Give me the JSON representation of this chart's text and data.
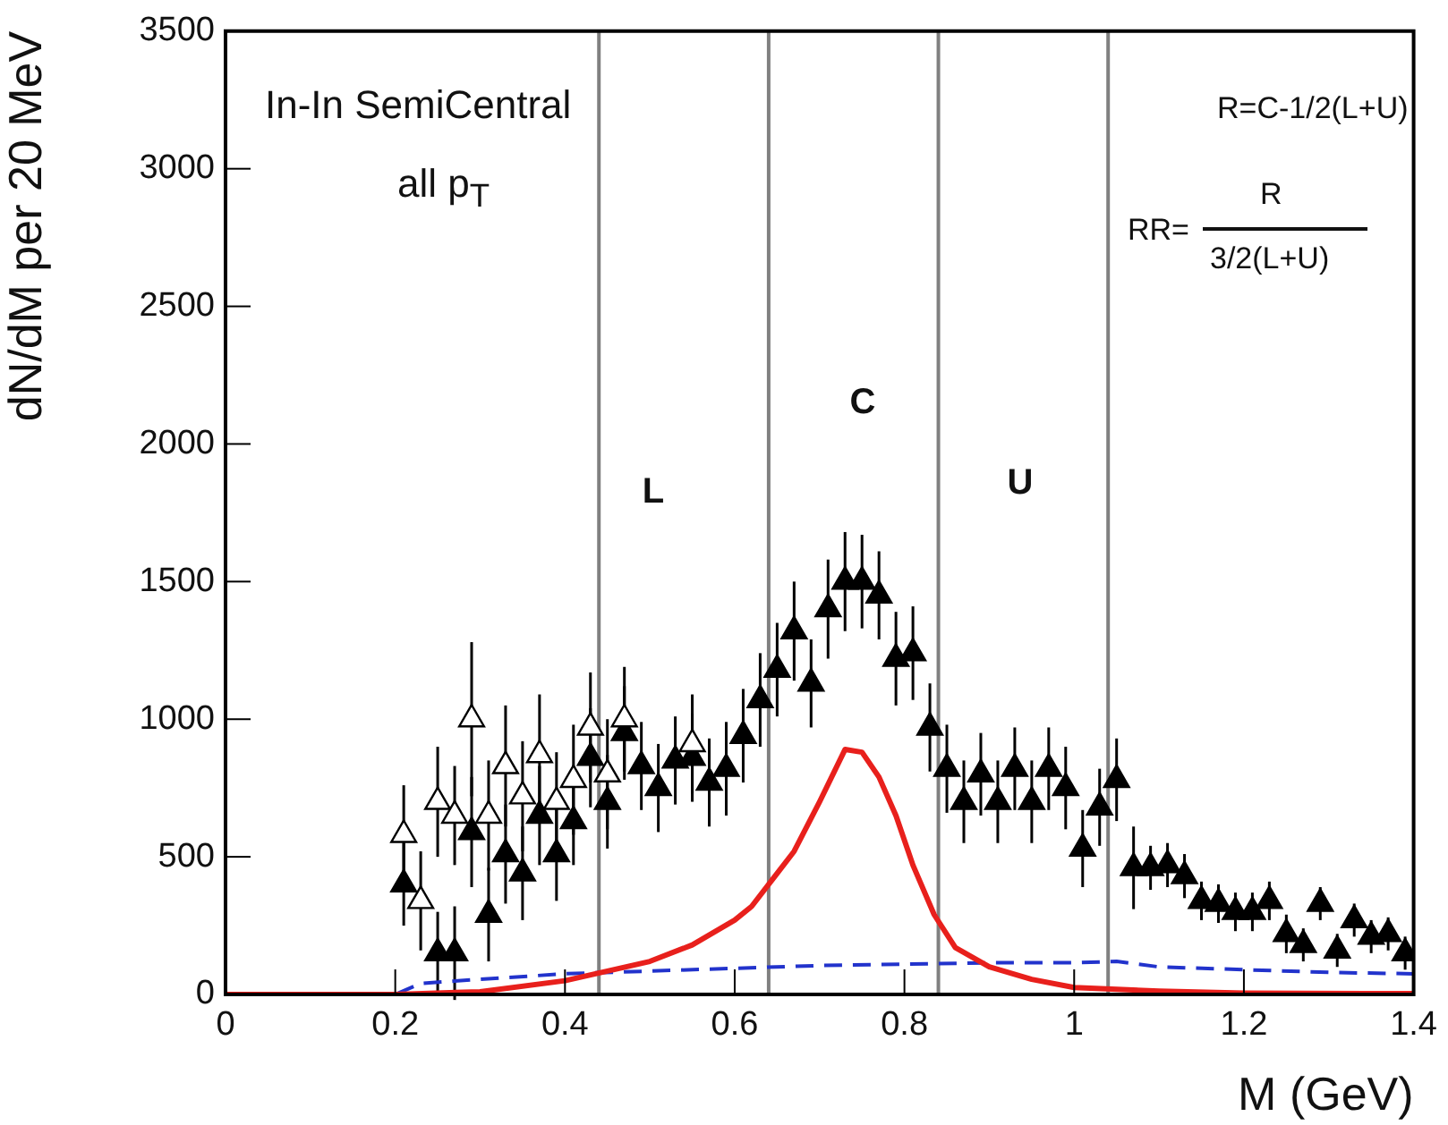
{
  "chart_data": {
    "type": "scatter",
    "xlabel": "M (GeV)",
    "ylabel": "dN/dM per 20 MeV",
    "xlim": [
      0,
      1.4
    ],
    "xticks": [
      0,
      0.2,
      0.4,
      0.6,
      0.8,
      1,
      1.2,
      1.4
    ],
    "ylim": [
      0,
      3500
    ],
    "yticks": [
      0,
      500,
      1000,
      1500,
      2000,
      2500,
      3000,
      3500
    ],
    "grid": false,
    "legend": false,
    "series": [
      {
        "type": "line",
        "color": "#e8201c",
        "line_style": "solid",
        "x": [
          0,
          0.2,
          0.3,
          0.4,
          0.5,
          0.55,
          0.6,
          0.62,
          0.65,
          0.67,
          0.7,
          0.73,
          0.75,
          0.77,
          0.79,
          0.81,
          0.835,
          0.86,
          0.9,
          0.95,
          1.0,
          1.1,
          1.2,
          1.4
        ],
        "values": [
          0,
          0,
          10,
          50,
          120,
          180,
          270,
          320,
          440,
          520,
          700,
          890,
          880,
          790,
          650,
          470,
          290,
          170,
          100,
          55,
          25,
          12,
          5,
          3
        ]
      },
      {
        "type": "line",
        "color": "#2233cc",
        "line_style": "dashed",
        "x": [
          0,
          0.2,
          0.23,
          0.3,
          0.4,
          0.5,
          0.6,
          0.7,
          0.8,
          0.9,
          1.0,
          1.05,
          1.1,
          1.2,
          1.3,
          1.4
        ],
        "values": [
          0,
          0,
          40,
          55,
          75,
          85,
          95,
          105,
          110,
          115,
          115,
          120,
          100,
          90,
          80,
          75
        ]
      },
      {
        "marker": "triangle",
        "color": "#ffffff",
        "x": [
          0.21,
          0.23,
          0.25,
          0.27,
          0.29,
          0.31,
          0.33,
          0.35,
          0.37,
          0.39,
          0.41,
          0.43,
          0.45,
          0.47,
          0.55
        ],
        "values": [
          580,
          340,
          700,
          650,
          1000,
          650,
          830,
          720,
          870,
          700,
          780,
          970,
          800,
          1000,
          910
        ],
        "errors": [
          180,
          180,
          200,
          180,
          280,
          200,
          220,
          200,
          220,
          180,
          200,
          200,
          200,
          190,
          180
        ]
      },
      {
        "marker": "triangle",
        "color": "#000000",
        "x": [
          0.21,
          0.25,
          0.27,
          0.29,
          0.31,
          0.33,
          0.35,
          0.37,
          0.39,
          0.41,
          0.43,
          0.45,
          0.47,
          0.49,
          0.51,
          0.53,
          0.55,
          0.57,
          0.59,
          0.61,
          0.63,
          0.65,
          0.67,
          0.69,
          0.71,
          0.73,
          0.75,
          0.77,
          0.79,
          0.81,
          0.83,
          0.85,
          0.87,
          0.89,
          0.91,
          0.93,
          0.95,
          0.97,
          0.99,
          1.01,
          1.03,
          1.05,
          1.07,
          1.09,
          1.11,
          1.13,
          1.15,
          1.17,
          1.19,
          1.21,
          1.23,
          1.25,
          1.27,
          1.29,
          1.31,
          1.33,
          1.35,
          1.37,
          1.39
        ],
        "values": [
          400,
          150,
          150,
          590,
          290,
          510,
          440,
          650,
          510,
          630,
          860,
          700,
          950,
          830,
          750,
          850,
          860,
          770,
          820,
          940,
          1070,
          1180,
          1320,
          1130,
          1400,
          1500,
          1500,
          1450,
          1220,
          1240,
          970,
          820,
          700,
          800,
          700,
          820,
          700,
          820,
          750,
          530,
          680,
          780,
          460,
          460,
          470,
          430,
          340,
          330,
          300,
          300,
          340,
          220,
          180,
          330,
          160,
          270,
          210,
          220,
          150
        ],
        "errors": [
          150,
          150,
          170,
          200,
          170,
          180,
          170,
          180,
          170,
          160,
          180,
          170,
          170,
          160,
          160,
          160,
          160,
          160,
          170,
          170,
          170,
          170,
          180,
          160,
          180,
          180,
          170,
          160,
          170,
          170,
          160,
          160,
          150,
          150,
          150,
          150,
          150,
          150,
          150,
          140,
          140,
          150,
          150,
          80,
          80,
          80,
          70,
          70,
          70,
          70,
          70,
          70,
          60,
          60,
          60,
          60,
          60,
          60,
          60
        ]
      }
    ],
    "ref_lines": [
      {
        "axis": "x",
        "value": 0.44,
        "color": "#808080"
      },
      {
        "axis": "x",
        "value": 0.64,
        "color": "#808080"
      },
      {
        "axis": "x",
        "value": 0.84,
        "color": "#808080"
      },
      {
        "axis": "x",
        "value": 1.04,
        "color": "#808080"
      }
    ],
    "annotations": [
      "In-In SemiCentral",
      "all p$_{T}$",
      "R=C-1/2(L+U)",
      "RR=",
      "R",
      "3/2(L+U)",
      "L",
      "C",
      "U"
    ]
  }
}
